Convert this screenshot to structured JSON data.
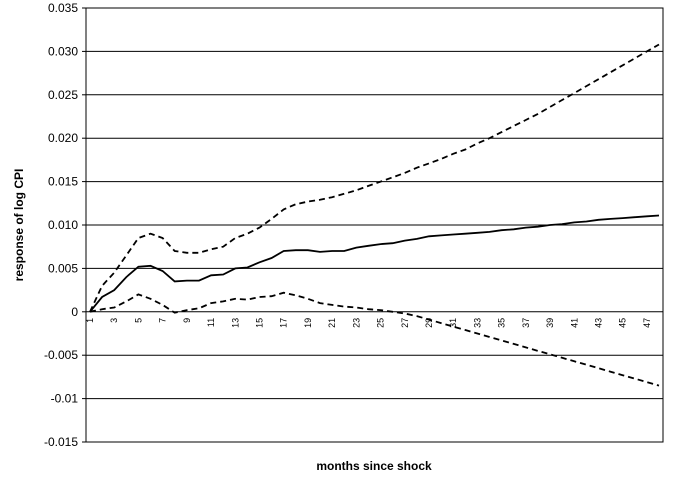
{
  "chart_data": {
    "type": "line",
    "title": "",
    "xlabel": "months since shock",
    "ylabel": "response of log CPI",
    "ylim": [
      -0.015,
      0.035
    ],
    "yticks": [
      "-0.015",
      "-0.01",
      "-0.005",
      "0",
      "0.005",
      "0.010",
      "0.015",
      "0.020",
      "0.025",
      "0.030",
      "0.035"
    ],
    "ytick_values": [
      -0.015,
      -0.01,
      -0.005,
      0,
      0.005,
      0.01,
      0.015,
      0.02,
      0.025,
      0.03,
      0.035
    ],
    "xticks": [
      "1",
      "3",
      "5",
      "7",
      "9",
      "11",
      "13",
      "15",
      "17",
      "19",
      "21",
      "23",
      "25",
      "27",
      "29",
      "31",
      "33",
      "35",
      "37",
      "39",
      "41",
      "43",
      "45",
      "47"
    ],
    "x": [
      1,
      2,
      3,
      4,
      5,
      6,
      7,
      8,
      9,
      10,
      11,
      12,
      13,
      14,
      15,
      16,
      17,
      18,
      19,
      20,
      21,
      22,
      23,
      24,
      25,
      26,
      27,
      28,
      29,
      30,
      31,
      32,
      33,
      34,
      35,
      36,
      37,
      38,
      39,
      40,
      41,
      42,
      43,
      44,
      45,
      46,
      47,
      48
    ],
    "grid": true,
    "legend": "none",
    "series": [
      {
        "style": "solid",
        "values": [
          0.0,
          0.0017,
          0.0025,
          0.004,
          0.0052,
          0.0053,
          0.0047,
          0.0035,
          0.0036,
          0.0036,
          0.0042,
          0.0043,
          0.005,
          0.0051,
          0.0057,
          0.0062,
          0.007,
          0.0071,
          0.0071,
          0.0069,
          0.007,
          0.007,
          0.0074,
          0.0076,
          0.0078,
          0.0079,
          0.0082,
          0.0084,
          0.0087,
          0.0088,
          0.0089,
          0.009,
          0.0091,
          0.0092,
          0.0094,
          0.0095,
          0.0097,
          0.0098,
          0.01,
          0.0101,
          0.0103,
          0.0104,
          0.0106,
          0.0107,
          0.0108,
          0.0109,
          0.011,
          0.0111
        ]
      },
      {
        "style": "dashed",
        "values": [
          0.0,
          0.003,
          0.0045,
          0.0065,
          0.0085,
          0.009,
          0.0085,
          0.007,
          0.0068,
          0.0068,
          0.0072,
          0.0075,
          0.0085,
          0.009,
          0.0097,
          0.0107,
          0.0118,
          0.0124,
          0.0127,
          0.0129,
          0.0132,
          0.0136,
          0.014,
          0.0145,
          0.015,
          0.0155,
          0.016,
          0.0166,
          0.0171,
          0.0176,
          0.0182,
          0.0187,
          0.0194,
          0.02,
          0.0207,
          0.0214,
          0.0221,
          0.0228,
          0.0236,
          0.0244,
          0.0252,
          0.026,
          0.0268,
          0.0276,
          0.0284,
          0.0292,
          0.03,
          0.0308
        ]
      },
      {
        "style": "dashed",
        "values": [
          0.0,
          0.0003,
          0.0005,
          0.0012,
          0.002,
          0.0015,
          0.0008,
          -0.0001,
          0.0002,
          0.0004,
          0.001,
          0.0012,
          0.0015,
          0.0014,
          0.0017,
          0.0018,
          0.0022,
          0.0019,
          0.0015,
          0.001,
          0.0008,
          0.0006,
          0.0005,
          0.0003,
          0.0002,
          0.0,
          -0.0002,
          -0.0005,
          -0.0009,
          -0.0013,
          -0.0017,
          -0.0021,
          -0.0025,
          -0.0029,
          -0.0033,
          -0.0037,
          -0.0041,
          -0.0045,
          -0.0049,
          -0.0053,
          -0.0057,
          -0.0061,
          -0.0065,
          -0.0069,
          -0.0073,
          -0.0077,
          -0.0081,
          -0.0085
        ]
      }
    ]
  }
}
